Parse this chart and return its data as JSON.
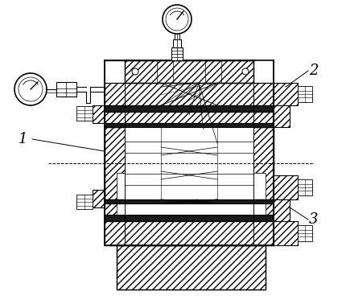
{
  "bg_color": "#ffffff",
  "dark_fill": "#1a1a1a",
  "label_fontsize": 13,
  "figsize": [
    4.3,
    3.78
  ],
  "dpi": 100
}
